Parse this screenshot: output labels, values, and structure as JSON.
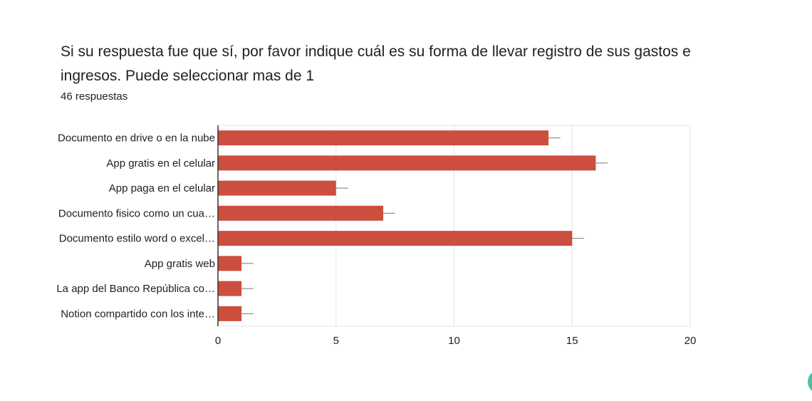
{
  "question": {
    "title": "Si su respuesta fue que sí, por favor indique cuál es su forma de llevar registro de sus gastos e ingresos. Puede seleccionar mas de 1",
    "response_count": "46 respuestas"
  },
  "colors": {
    "bar": "#cc4e3e",
    "grid": "#e6e6e6",
    "axis": "#333333",
    "text": "#202124",
    "side_button": "#4cc0a2"
  },
  "chart_data": {
    "type": "bar",
    "orientation": "horizontal",
    "categories": [
      "Documento en drive o en la nube",
      "App gratis en el celular",
      "App paga en el celular",
      "Documento fisico como un cua…",
      "Documento estilo word o excel…",
      "App gratis web",
      "La app del Banco República co…",
      "Notion compartido con los inte…"
    ],
    "values": [
      14,
      16,
      5,
      7,
      15,
      1,
      1,
      1
    ],
    "error_bars": true,
    "xlim": [
      0,
      20
    ],
    "xticks": [
      0,
      5,
      10,
      15,
      20
    ],
    "grid": true,
    "legend": "none"
  }
}
